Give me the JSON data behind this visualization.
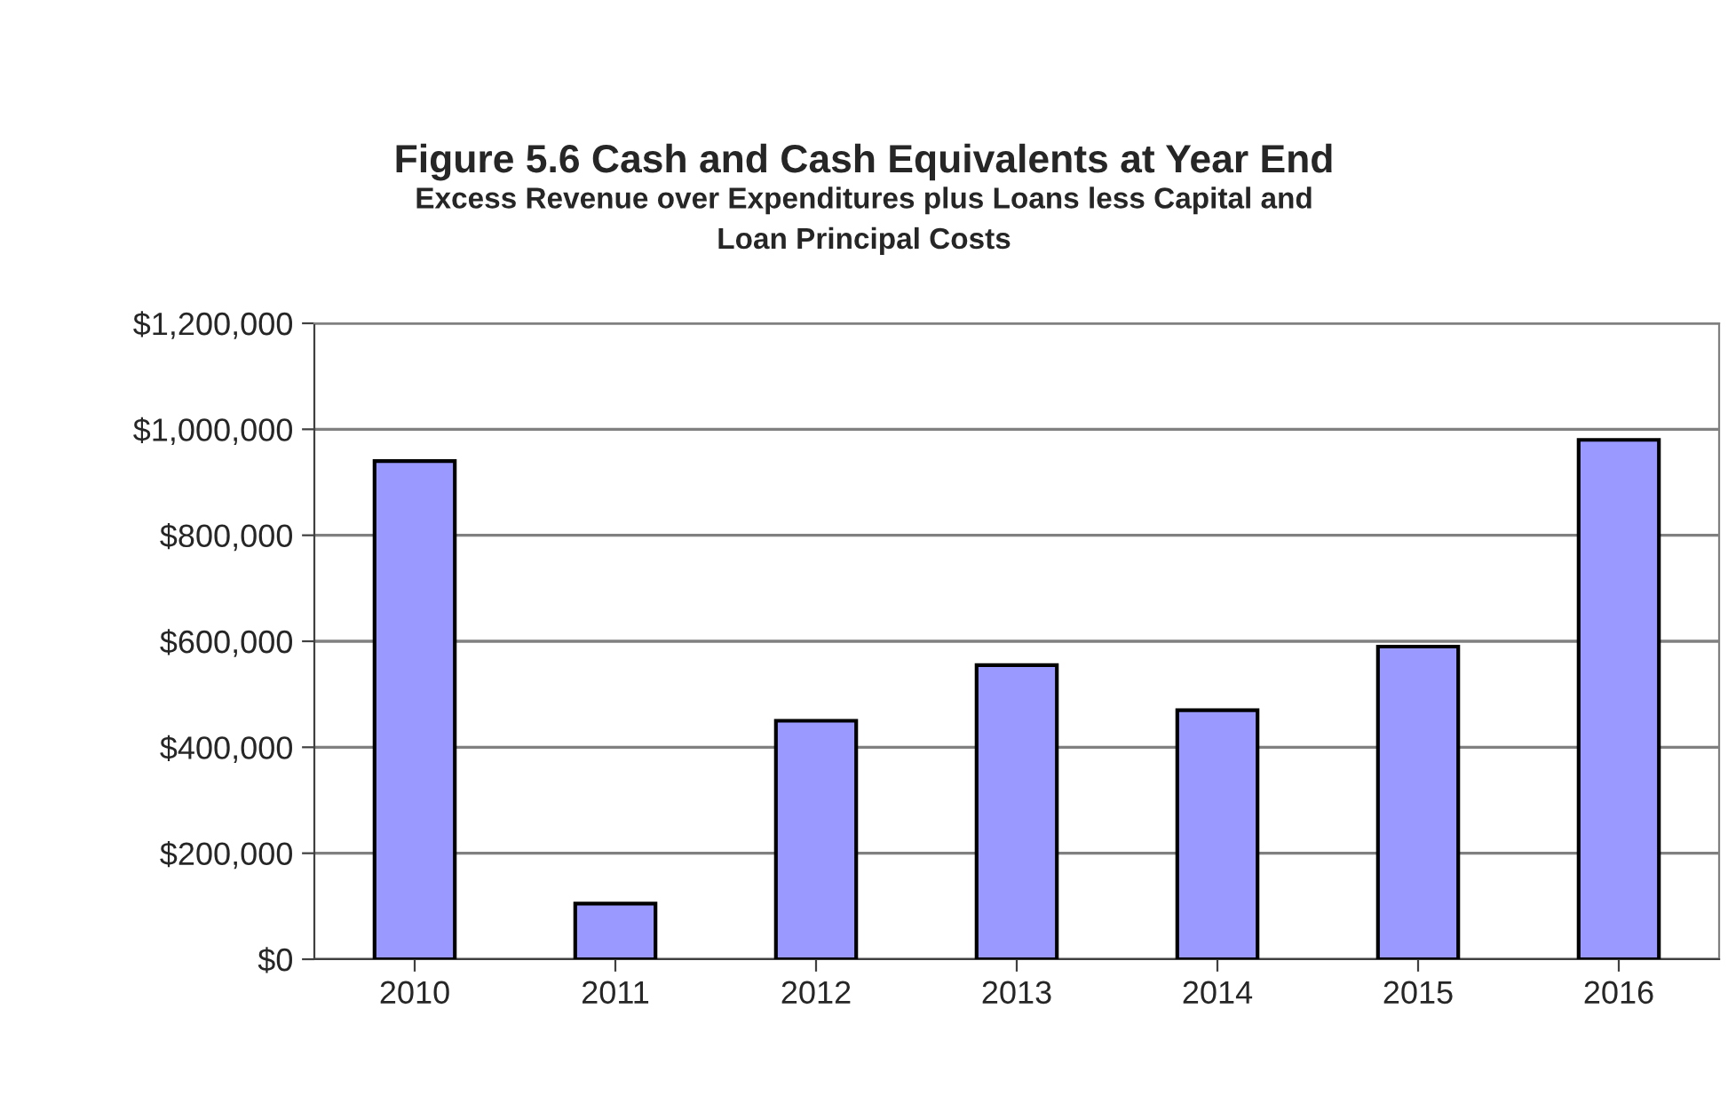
{
  "chart_data": {
    "type": "bar",
    "title": "Figure 5.6 Cash and Cash Equivalents at Year End",
    "subtitle": "Excess Revenue over Expenditures plus Loans less Capital and\nLoan Principal Costs",
    "categories": [
      "2010",
      "2011",
      "2012",
      "2013",
      "2014",
      "2015",
      "2016"
    ],
    "values": [
      940000,
      105000,
      450000,
      555000,
      470000,
      590000,
      980000
    ],
    "color": "#9999ff",
    "ylim": [
      0,
      1200000
    ],
    "yticks": [
      {
        "value": 0,
        "label": "$0"
      },
      {
        "value": 200000,
        "label": "$200,000"
      },
      {
        "value": 400000,
        "label": "$400,000"
      },
      {
        "value": 600000,
        "label": "$600,000"
      },
      {
        "value": 800000,
        "label": "$800,000"
      },
      {
        "value": 1000000,
        "label": "$1,000,000"
      },
      {
        "value": 1200000,
        "label": "$1,200,000"
      }
    ],
    "grid": "y",
    "legend": false
  }
}
